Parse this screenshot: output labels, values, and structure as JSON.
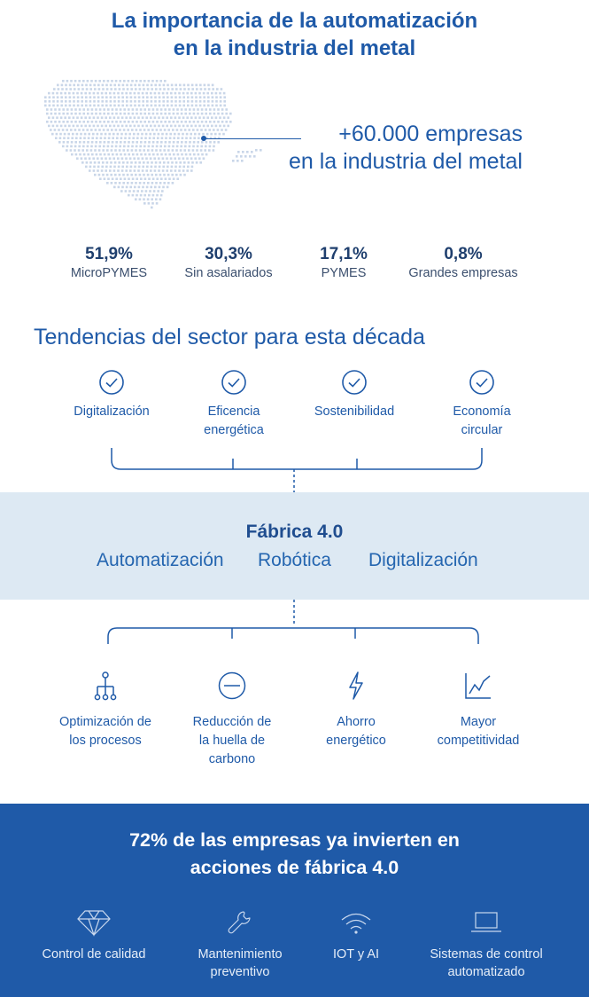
{
  "title": [
    "La importancia de la automatización",
    "en la industria del metal"
  ],
  "callout": [
    "+60.000 empresas",
    "en la industria del metal"
  ],
  "stats": [
    {
      "pct": "51,9%",
      "label": "MicroPYMES"
    },
    {
      "pct": "30,3%",
      "label": "Sin asalariados"
    },
    {
      "pct": "17,1%",
      "label": "PYMES"
    },
    {
      "pct": "0,8%",
      "label": "Grandes empresas"
    }
  ],
  "trends_title": "Tendencias del sector para esta década",
  "trends": [
    {
      "label": "Digitalización",
      "icon": "check-circle-icon"
    },
    {
      "label": "Eficencia energética",
      "icon": "check-circle-icon"
    },
    {
      "label": "Sostenibilidad",
      "icon": "check-circle-icon"
    },
    {
      "label": "Economía circular",
      "icon": "check-circle-icon"
    }
  ],
  "fabrica": {
    "title": "Fábrica 4.0",
    "items": [
      "Automatización",
      "Robótica",
      "Digitalización"
    ]
  },
  "benefits": [
    {
      "label": "Optimización de los procesos",
      "icon": "hierarchy-icon"
    },
    {
      "label": "Reducción de la huella de carbono",
      "icon": "minus-circle-icon"
    },
    {
      "label": "Ahorro energético",
      "icon": "lightning-icon"
    },
    {
      "label": "Mayor competitividad",
      "icon": "line-chart-icon"
    }
  ],
  "bottom_title": [
    "72% de las empresas ya invierten en",
    "acciones de fábrica 4.0"
  ],
  "tools": [
    {
      "label": "Control de calidad",
      "icon": "diamond-icon"
    },
    {
      "label": "Mantenimiento preventivo",
      "icon": "wrench-icon"
    },
    {
      "label": "IOT y AI",
      "icon": "wifi-icon"
    },
    {
      "label": "Sistemas de control automatizado",
      "icon": "laptop-icon"
    }
  ],
  "colors": {
    "primary": "#1f5aa8",
    "band": "#dde9f3",
    "dark_text": "#1f3f6e"
  }
}
